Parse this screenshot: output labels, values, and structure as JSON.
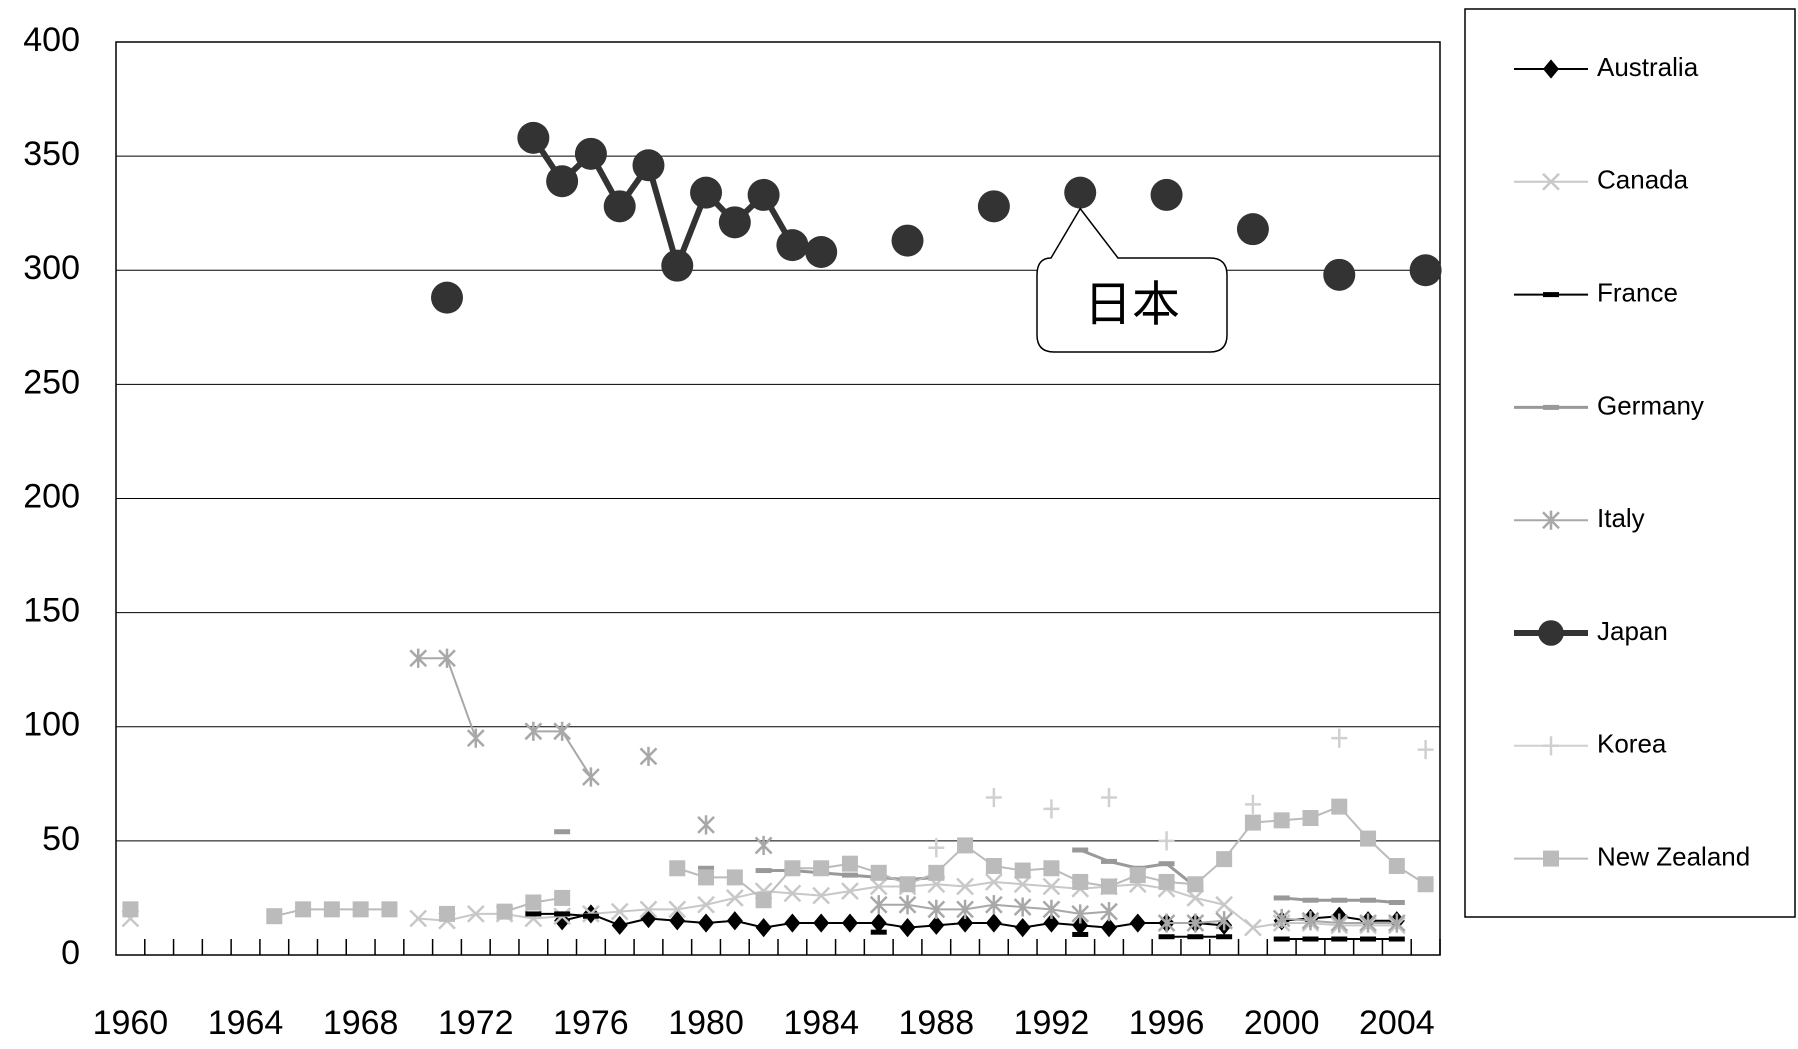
{
  "chart_data": {
    "type": "line",
    "x": [
      1960,
      1961,
      1962,
      1963,
      1964,
      1965,
      1966,
      1967,
      1968,
      1969,
      1970,
      1971,
      1972,
      1973,
      1974,
      1975,
      1976,
      1977,
      1978,
      1979,
      1980,
      1981,
      1982,
      1983,
      1984,
      1985,
      1986,
      1987,
      1988,
      1989,
      1990,
      1991,
      1992,
      1993,
      1994,
      1995,
      1996,
      1997,
      1998,
      1999,
      2000,
      2001,
      2002,
      2003,
      2004,
      2005
    ],
    "xlim": [
      1959.5,
      2005.5
    ],
    "xticks": [
      1960,
      1964,
      1968,
      1972,
      1976,
      1980,
      1984,
      1988,
      1992,
      1996,
      2000,
      2004
    ],
    "x_minor_ticks": [
      1960,
      1961,
      1962,
      1963,
      1964,
      1965,
      1966,
      1967,
      1968,
      1969,
      1970,
      1971,
      1972,
      1973,
      1974,
      1975,
      1976,
      1977,
      1978,
      1979,
      1980,
      1981,
      1982,
      1983,
      1984,
      1985,
      1986,
      1987,
      1988,
      1989,
      1990,
      1991,
      1992,
      1993,
      1994,
      1995,
      1996,
      1997,
      1998,
      1999,
      2000,
      2001,
      2002,
      2003,
      2004,
      2005
    ],
    "ylim": [
      0,
      400
    ],
    "yticks": [
      0,
      50,
      100,
      150,
      200,
      250,
      300,
      350,
      400
    ],
    "grid": true,
    "legend": "right",
    "annotation": {
      "text": "日本",
      "x": 1993,
      "y": 334
    },
    "series": [
      {
        "name": "Australia",
        "color": "#000000",
        "marker": "diamond",
        "width": 2,
        "values": [
          null,
          null,
          null,
          null,
          null,
          null,
          null,
          null,
          null,
          null,
          null,
          null,
          null,
          null,
          null,
          15,
          18,
          13,
          16,
          15,
          14,
          15,
          12,
          14,
          14,
          14,
          14,
          12,
          13,
          14,
          14,
          12,
          14,
          13,
          12,
          14,
          14,
          14,
          13,
          null,
          15,
          16,
          17,
          15,
          15,
          null
        ]
      },
      {
        "name": "Canada",
        "color": "#c8c8c8",
        "marker": "x",
        "width": 2,
        "values": [
          16,
          null,
          null,
          null,
          null,
          null,
          null,
          null,
          null,
          null,
          16,
          15,
          18,
          18,
          16,
          17,
          18,
          19,
          20,
          20,
          22,
          25,
          28,
          27,
          26,
          28,
          30,
          30,
          31,
          30,
          32,
          31,
          30,
          29,
          30,
          31,
          29,
          25,
          22,
          12,
          14,
          14,
          13,
          13,
          13,
          null
        ]
      },
      {
        "name": "France",
        "color": "#000000",
        "marker": "dash",
        "width": 2,
        "values": [
          null,
          null,
          null,
          null,
          null,
          null,
          null,
          null,
          null,
          null,
          null,
          null,
          null,
          null,
          18,
          18,
          17,
          null,
          null,
          null,
          null,
          null,
          null,
          null,
          null,
          null,
          10,
          null,
          null,
          null,
          null,
          null,
          null,
          9,
          null,
          null,
          8,
          8,
          8,
          null,
          7,
          7,
          7,
          7,
          7,
          null
        ]
      },
      {
        "name": "Germany",
        "color": "#999999",
        "marker": "dash",
        "width": 3,
        "values": [
          null,
          null,
          null,
          null,
          null,
          null,
          null,
          null,
          null,
          null,
          null,
          null,
          null,
          null,
          null,
          54,
          null,
          null,
          null,
          null,
          38,
          null,
          37,
          37,
          36,
          35,
          34,
          33,
          34,
          null,
          null,
          null,
          null,
          46,
          41,
          38,
          40,
          30,
          null,
          null,
          25,
          24,
          24,
          24,
          23,
          null
        ]
      },
      {
        "name": "Italy",
        "color": "#a8a8a8",
        "marker": "asterisk",
        "width": 2,
        "values": [
          null,
          null,
          null,
          null,
          null,
          null,
          null,
          null,
          null,
          null,
          130,
          130,
          95,
          null,
          98,
          98,
          78,
          null,
          87,
          null,
          57,
          null,
          48,
          null,
          null,
          null,
          22,
          22,
          20,
          20,
          22,
          21,
          20,
          18,
          19,
          null,
          14,
          14,
          15,
          null,
          16,
          15,
          14,
          14,
          14,
          null
        ]
      },
      {
        "name": "Japan",
        "color": "#333333",
        "marker": "circle",
        "width": 6,
        "values": [
          null,
          null,
          null,
          null,
          null,
          null,
          null,
          null,
          null,
          null,
          null,
          288,
          null,
          null,
          358,
          339,
          351,
          328,
          346,
          302,
          334,
          321,
          333,
          311,
          308,
          null,
          null,
          313,
          null,
          null,
          328,
          null,
          null,
          334,
          null,
          null,
          333,
          null,
          null,
          318,
          null,
          null,
          298,
          null,
          null,
          300
        ]
      },
      {
        "name": "Korea",
        "color": "#d0d0d0",
        "marker": "plus",
        "width": 2,
        "values": [
          null,
          null,
          null,
          null,
          null,
          null,
          null,
          null,
          null,
          null,
          null,
          null,
          null,
          null,
          null,
          null,
          null,
          null,
          null,
          null,
          null,
          null,
          null,
          null,
          null,
          null,
          null,
          null,
          47,
          null,
          69,
          null,
          64,
          null,
          69,
          null,
          50,
          null,
          null,
          66,
          null,
          null,
          95,
          null,
          null,
          90
        ]
      },
      {
        "name": "New Zealand",
        "color": "#bbbbbb",
        "marker": "square",
        "width": 2,
        "values": [
          20,
          null,
          null,
          null,
          null,
          17,
          20,
          20,
          20,
          20,
          null,
          18,
          null,
          19,
          23,
          25,
          null,
          null,
          null,
          38,
          34,
          34,
          24,
          38,
          38,
          40,
          36,
          31,
          36,
          48,
          39,
          37,
          38,
          32,
          30,
          35,
          32,
          31,
          42,
          58,
          59,
          60,
          65,
          51,
          39,
          31
        ]
      }
    ]
  }
}
